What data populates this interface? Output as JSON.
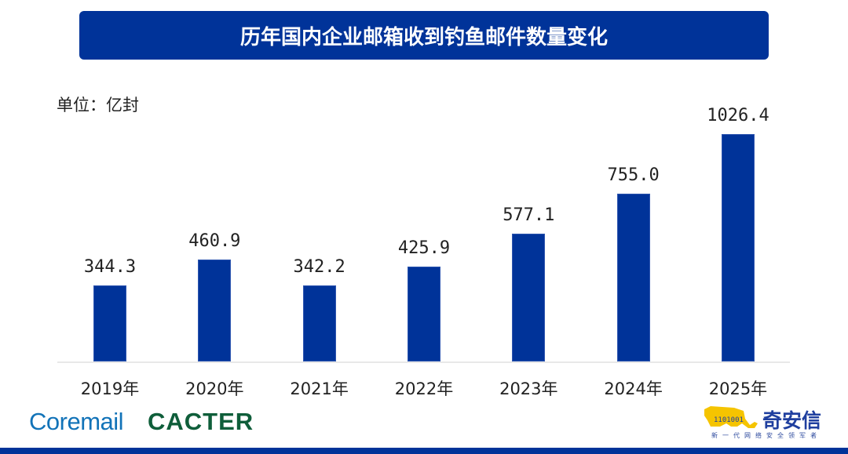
{
  "title": "历年国内企业邮箱收到钓鱼邮件数量变化",
  "unit_label": "单位：亿封",
  "colors": {
    "banner": "#003399",
    "bar": "#003399",
    "footer": "#003399",
    "coremail": "#1273b8",
    "cacter": "#0f5e3a",
    "qax_tiger": "#f5c400",
    "qax_text": "#1f3f9f"
  },
  "chart_data": {
    "type": "bar",
    "title": "历年国内企业邮箱收到钓鱼邮件数量变化",
    "xlabel": "",
    "ylabel": "单位：亿封",
    "categories": [
      "2019年",
      "2020年",
      "2021年",
      "2022年",
      "2023年",
      "2024年",
      "2025年"
    ],
    "values": [
      344.3,
      460.9,
      342.2,
      425.9,
      577.1,
      755.0,
      1026.4
    ],
    "value_labels": [
      "344.3",
      "460.9",
      "342.2",
      "425.9",
      "577.1",
      "755.0",
      "1026.4"
    ],
    "ylim": [
      0,
      1100
    ],
    "grid": false,
    "legend": "none",
    "data_labels": true
  },
  "logos": {
    "coremail": "Coremail",
    "cacter": "CACTER",
    "qax_name": "奇安信",
    "qax_slogan": "新一代网络安全领军者",
    "qax_tiger_icon": "tiger-binary-logo"
  }
}
